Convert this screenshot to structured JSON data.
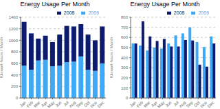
{
  "chart_data": [
    {
      "type": "bar",
      "stacked": true,
      "title": "Energy Usage Per Month",
      "ylabel": "Kilowatt-hours / Month",
      "categories": [
        "Jan",
        "Feb",
        "Mar",
        "Apr",
        "May",
        "Jun",
        "Jul",
        "Aug",
        "Sep",
        "Oct",
        "Nov",
        "Dec"
      ],
      "series": [
        {
          "name": "2009",
          "color": "#3fa9f5",
          "values": [
            560,
            490,
            650,
            660,
            550,
            560,
            620,
            630,
            720,
            490,
            470,
            600
          ]
        },
        {
          "name": "2008",
          "color": "#0d1b6e",
          "values": [
            760,
            630,
            380,
            420,
            420,
            540,
            630,
            610,
            560,
            610,
            530,
            640
          ]
        }
      ],
      "ylim": [
        0,
        1400
      ],
      "yticks": [
        0,
        200,
        400,
        600,
        800,
        1000,
        1200,
        1400
      ],
      "grid": true,
      "legend": "upper right"
    },
    {
      "type": "bar",
      "stacked": false,
      "title": "Energy Usage Per Month",
      "ylabel": "Kilowatt-hours / Month",
      "categories": [
        "Jan",
        "Feb",
        "Mar",
        "Apr",
        "May",
        "Jun",
        "Jul",
        "Aug",
        "Sep",
        "Oct",
        "Nov",
        "Dec"
      ],
      "series": [
        {
          "name": "2009",
          "color": "#3fa9f5",
          "values": [
            540,
            520,
            470,
            500,
            490,
            540,
            620,
            640,
            700,
            555,
            505,
            610
          ]
        },
        {
          "name": "2008",
          "color": "#0d1b6e",
          "values": [
            540,
            760,
            610,
            565,
            585,
            510,
            510,
            575,
            570,
            330,
            310,
            540
          ]
        }
      ],
      "ylim": [
        0,
        800
      ],
      "yticks": [
        0,
        100,
        200,
        300,
        400,
        500,
        600,
        700,
        800
      ],
      "grid": true,
      "legend": "upper right"
    }
  ]
}
